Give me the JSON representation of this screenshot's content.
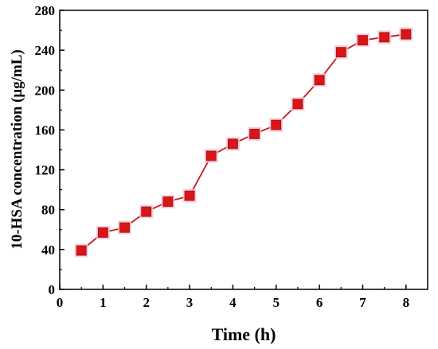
{
  "chart_data": {
    "type": "line",
    "title": "",
    "xlabel": "Time (h)",
    "ylabel": "10-HSA concentration (μg/mL)",
    "xlim": [
      0,
      8.5
    ],
    "ylim": [
      0,
      280
    ],
    "xticks": [
      0,
      1,
      2,
      3,
      4,
      5,
      6,
      7,
      8
    ],
    "yticks": [
      0,
      40,
      80,
      120,
      160,
      200,
      240,
      280
    ],
    "grid": false,
    "legend": "none",
    "marker": "square",
    "colors": {
      "line": "#c41a1a",
      "marker_fill": "#d91515",
      "marker_edge": "#9e1010",
      "marker_glow": "#f3c4d6"
    },
    "series": [
      {
        "x": [
          0.5,
          1.0,
          1.5,
          2.0,
          2.5,
          3.0,
          3.5,
          4.0,
          4.5,
          5.0,
          5.5,
          6.0,
          6.5,
          7.0,
          7.5,
          8.0
        ],
        "values": [
          39,
          57,
          62,
          78,
          88,
          94,
          134,
          146,
          156,
          165,
          186,
          210,
          238,
          250,
          253,
          256
        ]
      }
    ]
  }
}
